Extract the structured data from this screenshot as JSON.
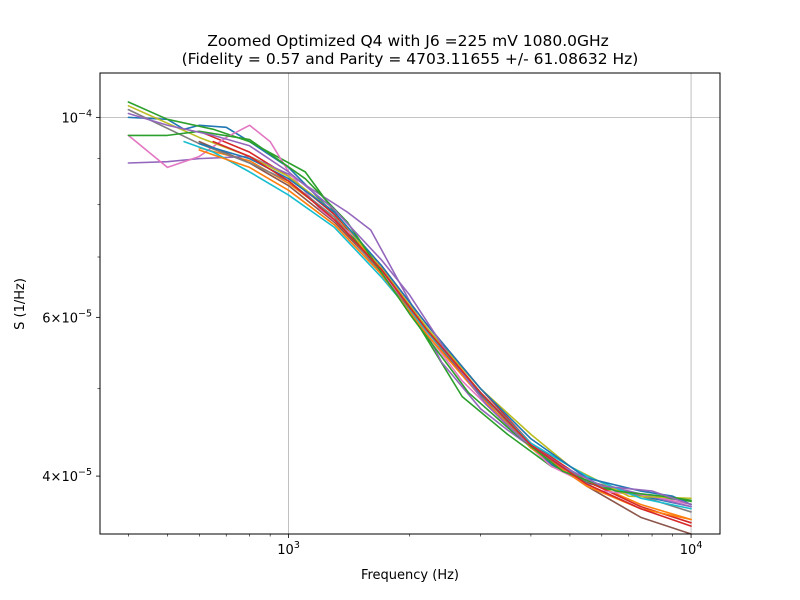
{
  "chart_data": {
    "type": "line",
    "title": "Zoomed Optimized Q4 with J6 =225 mV 1080.0GHz",
    "subtitle": "(Fidelity = 0.57 and Parity = 4703.11655 +/- 61.08632 Hz)",
    "xlabel": "Frequency (Hz)",
    "ylabel": "S (1/Hz)",
    "xscale": "log",
    "yscale": "log",
    "xlim": [
      340,
      11800
    ],
    "ylim": [
      3.45e-05,
      0.000112
    ],
    "grid": true,
    "xticks": [
      {
        "value": 1000,
        "base": "10",
        "exp": "3"
      },
      {
        "value": 10000,
        "base": "10",
        "exp": "4"
      }
    ],
    "yticks": [
      {
        "value": 4e-05,
        "mant": "4",
        "base": "10",
        "exp": "−5"
      },
      {
        "value": 6e-05,
        "mant": "6",
        "base": "10",
        "exp": "−5"
      },
      {
        "value": 0.0001,
        "mant": "",
        "base": "10",
        "exp": "−4"
      }
    ],
    "y_minor_ticks": [
      3e-05,
      5e-05,
      7e-05,
      8e-05,
      9e-05
    ],
    "series": [
      {
        "color": "#1f77b4",
        "kind": "data",
        "points": [
          [
            400,
            0.0001
          ],
          [
            500,
            9.95e-05
          ],
          [
            550,
            9.7e-05
          ],
          [
            600,
            9.8e-05
          ],
          [
            700,
            9.75e-05
          ],
          [
            800,
            9.4e-05
          ],
          [
            1000,
            8.8e-05
          ],
          [
            1200,
            8.1e-05
          ],
          [
            1500,
            7.3e-05
          ],
          [
            2000,
            6.1e-05
          ],
          [
            2700,
            5.2e-05
          ],
          [
            3500,
            4.55e-05
          ],
          [
            4500,
            4.12e-05
          ],
          [
            5500,
            3.93e-05
          ],
          [
            6500,
            3.87e-05
          ],
          [
            8000,
            3.78e-05
          ],
          [
            10000,
            3.7e-05
          ]
        ]
      },
      {
        "color": "#ff7f0e",
        "kind": "fit",
        "points": [
          [
            600,
            9.25e-05
          ],
          [
            800,
            8.95e-05
          ],
          [
            1000,
            8.45e-05
          ],
          [
            1300,
            7.75e-05
          ],
          [
            1700,
            6.8e-05
          ],
          [
            2200,
            5.85e-05
          ],
          [
            3000,
            4.95e-05
          ],
          [
            4000,
            4.35e-05
          ],
          [
            5500,
            3.95e-05
          ],
          [
            7500,
            3.72e-05
          ],
          [
            10000,
            3.58e-05
          ]
        ]
      },
      {
        "color": "#2ca02c",
        "kind": "data",
        "points": [
          [
            400,
            0.000104
          ],
          [
            500,
            9.95e-05
          ],
          [
            650,
            9.7e-05
          ],
          [
            800,
            9.4e-05
          ],
          [
            1100,
            8.7e-05
          ],
          [
            1500,
            7.2e-05
          ],
          [
            2000,
            6.1e-05
          ],
          [
            2700,
            4.9e-05
          ],
          [
            3500,
            4.45e-05
          ],
          [
            4500,
            4.1e-05
          ],
          [
            6000,
            3.88e-05
          ],
          [
            8000,
            3.8e-05
          ],
          [
            10000,
            3.75e-05
          ]
        ]
      },
      {
        "color": "#d62728",
        "kind": "fit",
        "points": [
          [
            600,
            9.65e-05
          ],
          [
            800,
            9.15e-05
          ],
          [
            1000,
            8.6e-05
          ],
          [
            1300,
            7.8e-05
          ],
          [
            1700,
            6.85e-05
          ],
          [
            2200,
            5.9e-05
          ],
          [
            3000,
            5e-05
          ],
          [
            4000,
            4.35e-05
          ],
          [
            5500,
            3.95e-05
          ],
          [
            7500,
            3.7e-05
          ],
          [
            10000,
            3.55e-05
          ]
        ]
      },
      {
        "color": "#9467bd",
        "kind": "data",
        "points": [
          [
            400,
            8.9e-05
          ],
          [
            500,
            8.93e-05
          ],
          [
            600,
            9e-05
          ],
          [
            800,
            9.05e-05
          ],
          [
            1000,
            8.65e-05
          ],
          [
            1400,
            7.85e-05
          ],
          [
            1600,
            7.5e-05
          ],
          [
            2000,
            6.25e-05
          ],
          [
            2400,
            5.35e-05
          ],
          [
            3000,
            4.75e-05
          ],
          [
            3500,
            4.5e-05
          ],
          [
            4500,
            4.15e-05
          ],
          [
            5500,
            3.95e-05
          ],
          [
            7000,
            3.85e-05
          ],
          [
            10000,
            3.7e-05
          ]
        ]
      },
      {
        "color": "#8c564b",
        "kind": "fit",
        "points": [
          [
            600,
            9.4e-05
          ],
          [
            800,
            8.9e-05
          ],
          [
            1000,
            8.4e-05
          ],
          [
            1300,
            7.65e-05
          ],
          [
            1700,
            6.75e-05
          ],
          [
            2200,
            5.8e-05
          ],
          [
            3000,
            4.9e-05
          ],
          [
            4000,
            4.3e-05
          ],
          [
            5500,
            3.9e-05
          ],
          [
            7500,
            3.6e-05
          ],
          [
            10000,
            3.45e-05
          ]
        ]
      },
      {
        "color": "#e377c2",
        "kind": "data",
        "points": [
          [
            400,
            9.55e-05
          ],
          [
            500,
            8.8e-05
          ],
          [
            600,
            9.05e-05
          ],
          [
            700,
            9.5e-05
          ],
          [
            800,
            9.8e-05
          ],
          [
            900,
            9.4e-05
          ],
          [
            1000,
            8.7e-05
          ],
          [
            1200,
            7.9e-05
          ],
          [
            1500,
            7.3e-05
          ],
          [
            2000,
            6.1e-05
          ],
          [
            2700,
            5.1e-05
          ],
          [
            3500,
            4.55e-05
          ],
          [
            4500,
            4.1e-05
          ],
          [
            6000,
            3.85e-05
          ],
          [
            8000,
            3.8e-05
          ],
          [
            10000,
            3.72e-05
          ]
        ]
      },
      {
        "color": "#7f7f7f",
        "kind": "data",
        "points": [
          [
            400,
            0.000102
          ],
          [
            600,
            9.35e-05
          ],
          [
            800,
            8.9e-05
          ],
          [
            1000,
            8.5e-05
          ],
          [
            1300,
            7.75e-05
          ],
          [
            1700,
            6.7e-05
          ],
          [
            2200,
            5.8e-05
          ],
          [
            3000,
            4.95e-05
          ],
          [
            4000,
            4.3e-05
          ],
          [
            5500,
            3.95e-05
          ],
          [
            7500,
            3.8e-05
          ],
          [
            10000,
            3.65e-05
          ]
        ]
      },
      {
        "color": "#bcbd22",
        "kind": "data",
        "points": [
          [
            400,
            0.000103
          ],
          [
            600,
            9.5e-05
          ],
          [
            800,
            9.05e-05
          ],
          [
            1000,
            8.6e-05
          ],
          [
            1300,
            7.85e-05
          ],
          [
            1700,
            6.8e-05
          ],
          [
            2200,
            5.85e-05
          ],
          [
            3000,
            5e-05
          ],
          [
            4000,
            4.45e-05
          ],
          [
            5000,
            4.1e-05
          ],
          [
            7000,
            3.8e-05
          ],
          [
            10000,
            3.78e-05
          ]
        ]
      },
      {
        "color": "#17becf",
        "kind": "data",
        "points": [
          [
            550,
            9.4e-05
          ],
          [
            650,
            9.15e-05
          ],
          [
            800,
            8.7e-05
          ],
          [
            1000,
            8.2e-05
          ],
          [
            1300,
            7.55e-05
          ],
          [
            1700,
            6.65e-05
          ],
          [
            2200,
            5.8e-05
          ],
          [
            3000,
            4.95e-05
          ],
          [
            4000,
            4.35e-05
          ],
          [
            5500,
            4e-05
          ],
          [
            7500,
            3.78e-05
          ],
          [
            10000,
            3.68e-05
          ]
        ]
      },
      {
        "color": "#1f77b4",
        "kind": "data",
        "points": [
          [
            600,
            9.35e-05
          ],
          [
            800,
            9e-05
          ],
          [
            1000,
            8.55e-05
          ],
          [
            1300,
            7.85e-05
          ],
          [
            1700,
            6.85e-05
          ],
          [
            2200,
            5.9e-05
          ],
          [
            3000,
            5e-05
          ],
          [
            4000,
            4.4e-05
          ],
          [
            5500,
            3.98e-05
          ],
          [
            7500,
            3.85e-05
          ],
          [
            9000,
            3.8e-05
          ],
          [
            10000,
            3.72e-05
          ]
        ]
      },
      {
        "color": "#ff7f0e",
        "kind": "fit",
        "points": [
          [
            600,
            9.2e-05
          ],
          [
            800,
            8.8e-05
          ],
          [
            1000,
            8.3e-05
          ],
          [
            1300,
            7.6e-05
          ],
          [
            1700,
            6.7e-05
          ],
          [
            2200,
            5.75e-05
          ],
          [
            3000,
            4.9e-05
          ],
          [
            4000,
            4.3e-05
          ],
          [
            5500,
            3.9e-05
          ],
          [
            7500,
            3.68e-05
          ],
          [
            10000,
            3.58e-05
          ]
        ]
      },
      {
        "color": "#2ca02c",
        "kind": "data",
        "points": [
          [
            400,
            9.55e-05
          ],
          [
            500,
            9.55e-05
          ],
          [
            600,
            9.65e-05
          ],
          [
            800,
            9.45e-05
          ],
          [
            1100,
            8.55e-05
          ],
          [
            1400,
            7.65e-05
          ],
          [
            2000,
            6.05e-05
          ],
          [
            2800,
            4.95e-05
          ],
          [
            3600,
            4.48e-05
          ],
          [
            4800,
            4.05e-05
          ],
          [
            6500,
            3.85e-05
          ],
          [
            8500,
            3.8e-05
          ],
          [
            10000,
            3.76e-05
          ]
        ]
      },
      {
        "color": "#9467bd",
        "kind": "data",
        "points": [
          [
            400,
            0.000101
          ],
          [
            500,
            9.8e-05
          ],
          [
            650,
            9.55e-05
          ],
          [
            800,
            9.3e-05
          ],
          [
            1000,
            8.7e-05
          ],
          [
            1300,
            7.9e-05
          ],
          [
            1700,
            6.95e-05
          ],
          [
            2000,
            6.35e-05
          ],
          [
            2500,
            5.45e-05
          ],
          [
            3100,
            4.8e-05
          ],
          [
            3800,
            4.4e-05
          ],
          [
            4800,
            4.1e-05
          ],
          [
            6000,
            3.9e-05
          ],
          [
            8000,
            3.85e-05
          ],
          [
            10000,
            3.72e-05
          ]
        ]
      },
      {
        "color": "#d62728",
        "kind": "fit",
        "points": [
          [
            650,
            9.4e-05
          ],
          [
            800,
            9.05e-05
          ],
          [
            1000,
            8.5e-05
          ],
          [
            1300,
            7.7e-05
          ],
          [
            1700,
            6.78e-05
          ],
          [
            2200,
            5.82e-05
          ],
          [
            3000,
            4.95e-05
          ],
          [
            4000,
            4.33e-05
          ],
          [
            5500,
            3.92e-05
          ],
          [
            7500,
            3.68e-05
          ],
          [
            10000,
            3.52e-05
          ]
        ]
      }
    ]
  }
}
